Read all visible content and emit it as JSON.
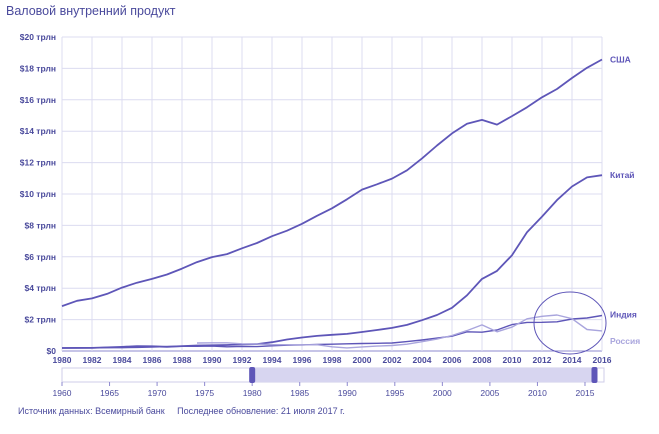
{
  "title": "Валовой внутренний продукт",
  "footer": {
    "source": "Источник данных: Всемирный банк",
    "updated": "Последнее обновление: 21 июля 2017 г."
  },
  "colors": {
    "primary": "#5e56b8",
    "light": "#a9a5dd",
    "grid": "#dcdcf0",
    "text": "#4a4a9c"
  },
  "timeline": {
    "ticks": [
      "1960",
      "1965",
      "1970",
      "1975",
      "1980",
      "1985",
      "1990",
      "1995",
      "2000",
      "2005",
      "2010",
      "2015"
    ],
    "range": [
      1960,
      2017
    ],
    "selected": [
      1980,
      2016
    ]
  },
  "chart_data": {
    "type": "line",
    "title": "Валовой внутренний продукт",
    "xlim": [
      1980,
      2016
    ],
    "ylim": [
      0,
      20
    ],
    "x_ticks": [
      1980,
      1982,
      1984,
      1986,
      1988,
      1990,
      1992,
      1994,
      1996,
      1998,
      2000,
      2002,
      2004,
      2006,
      2008,
      2010,
      2012,
      2014,
      2016
    ],
    "y_ticks": [
      {
        "value": 0,
        "label": "$0"
      },
      {
        "value": 2,
        "label": "$2 трлн"
      },
      {
        "value": 4,
        "label": "$4 трлн"
      },
      {
        "value": 6,
        "label": "$6 трлн"
      },
      {
        "value": 8,
        "label": "$8 трлн"
      },
      {
        "value": 10,
        "label": "$10 трлн"
      },
      {
        "value": 12,
        "label": "$12 трлн"
      },
      {
        "value": 14,
        "label": "$14 трлн"
      },
      {
        "value": 16,
        "label": "$16 трлн"
      },
      {
        "value": 18,
        "label": "$18 трлн"
      },
      {
        "value": 20,
        "label": "$20 трлн"
      }
    ],
    "grid": true,
    "legend": "inline-right",
    "series": [
      {
        "name": "США",
        "color": "#5e56b8",
        "bold": true,
        "x": [
          1980,
          1981,
          1982,
          1983,
          1984,
          1985,
          1986,
          1987,
          1988,
          1989,
          1990,
          1991,
          1992,
          1993,
          1994,
          1995,
          1996,
          1997,
          1998,
          1999,
          2000,
          2001,
          2002,
          2003,
          2004,
          2005,
          2006,
          2007,
          2008,
          2009,
          2010,
          2011,
          2012,
          2013,
          2014,
          2015,
          2016
        ],
        "y": [
          2.86,
          3.2,
          3.35,
          3.64,
          4.04,
          4.35,
          4.59,
          4.87,
          5.25,
          5.66,
          5.98,
          6.17,
          6.54,
          6.88,
          7.31,
          7.66,
          8.1,
          8.61,
          9.09,
          9.66,
          10.28,
          10.62,
          10.98,
          11.51,
          12.27,
          13.09,
          13.86,
          14.48,
          14.72,
          14.42,
          14.96,
          15.52,
          16.16,
          16.69,
          17.39,
          18.04,
          18.57
        ]
      },
      {
        "name": "Китай",
        "color": "#5e56b8",
        "bold": true,
        "x": [
          1980,
          1981,
          1982,
          1983,
          1984,
          1985,
          1986,
          1987,
          1988,
          1989,
          1990,
          1991,
          1992,
          1993,
          1994,
          1995,
          1996,
          1997,
          1998,
          1999,
          2000,
          2001,
          2002,
          2003,
          2004,
          2005,
          2006,
          2007,
          2008,
          2009,
          2010,
          2011,
          2012,
          2013,
          2014,
          2015,
          2016
        ],
        "y": [
          0.19,
          0.2,
          0.2,
          0.23,
          0.26,
          0.31,
          0.3,
          0.27,
          0.31,
          0.35,
          0.36,
          0.38,
          0.42,
          0.44,
          0.56,
          0.73,
          0.86,
          0.96,
          1.03,
          1.09,
          1.21,
          1.34,
          1.47,
          1.66,
          1.96,
          2.29,
          2.75,
          3.55,
          4.59,
          5.1,
          6.1,
          7.57,
          8.56,
          9.61,
          10.48,
          11.06,
          11.2
        ]
      },
      {
        "name": "Индия",
        "color": "#5e56b8",
        "bold": false,
        "x": [
          1980,
          1981,
          1982,
          1983,
          1984,
          1985,
          1986,
          1987,
          1988,
          1989,
          1990,
          1991,
          1992,
          1993,
          1994,
          1995,
          1996,
          1997,
          1998,
          1999,
          2000,
          2001,
          2002,
          2003,
          2004,
          2005,
          2006,
          2007,
          2008,
          2009,
          2010,
          2011,
          2012,
          2013,
          2014,
          2015,
          2016
        ],
        "y": [
          0.19,
          0.19,
          0.2,
          0.22,
          0.21,
          0.23,
          0.25,
          0.28,
          0.3,
          0.3,
          0.32,
          0.27,
          0.29,
          0.28,
          0.33,
          0.37,
          0.39,
          0.42,
          0.43,
          0.46,
          0.48,
          0.49,
          0.51,
          0.6,
          0.7,
          0.82,
          0.94,
          1.22,
          1.2,
          1.34,
          1.68,
          1.82,
          1.83,
          1.86,
          2.04,
          2.1,
          2.26
        ]
      },
      {
        "name": "Россия",
        "color": "#a9a5dd",
        "bold": false,
        "x": [
          1989,
          1990,
          1991,
          1992,
          1993,
          1994,
          1995,
          1996,
          1997,
          1998,
          1999,
          2000,
          2001,
          2002,
          2003,
          2004,
          2005,
          2006,
          2007,
          2008,
          2009,
          2010,
          2011,
          2012,
          2013,
          2014,
          2015,
          2016
        ],
        "y": [
          0.51,
          0.52,
          0.52,
          0.46,
          0.44,
          0.4,
          0.4,
          0.39,
          0.4,
          0.27,
          0.2,
          0.26,
          0.31,
          0.35,
          0.43,
          0.59,
          0.76,
          0.99,
          1.3,
          1.66,
          1.22,
          1.52,
          2.05,
          2.21,
          2.29,
          2.06,
          1.37,
          1.28
        ]
      }
    ]
  }
}
